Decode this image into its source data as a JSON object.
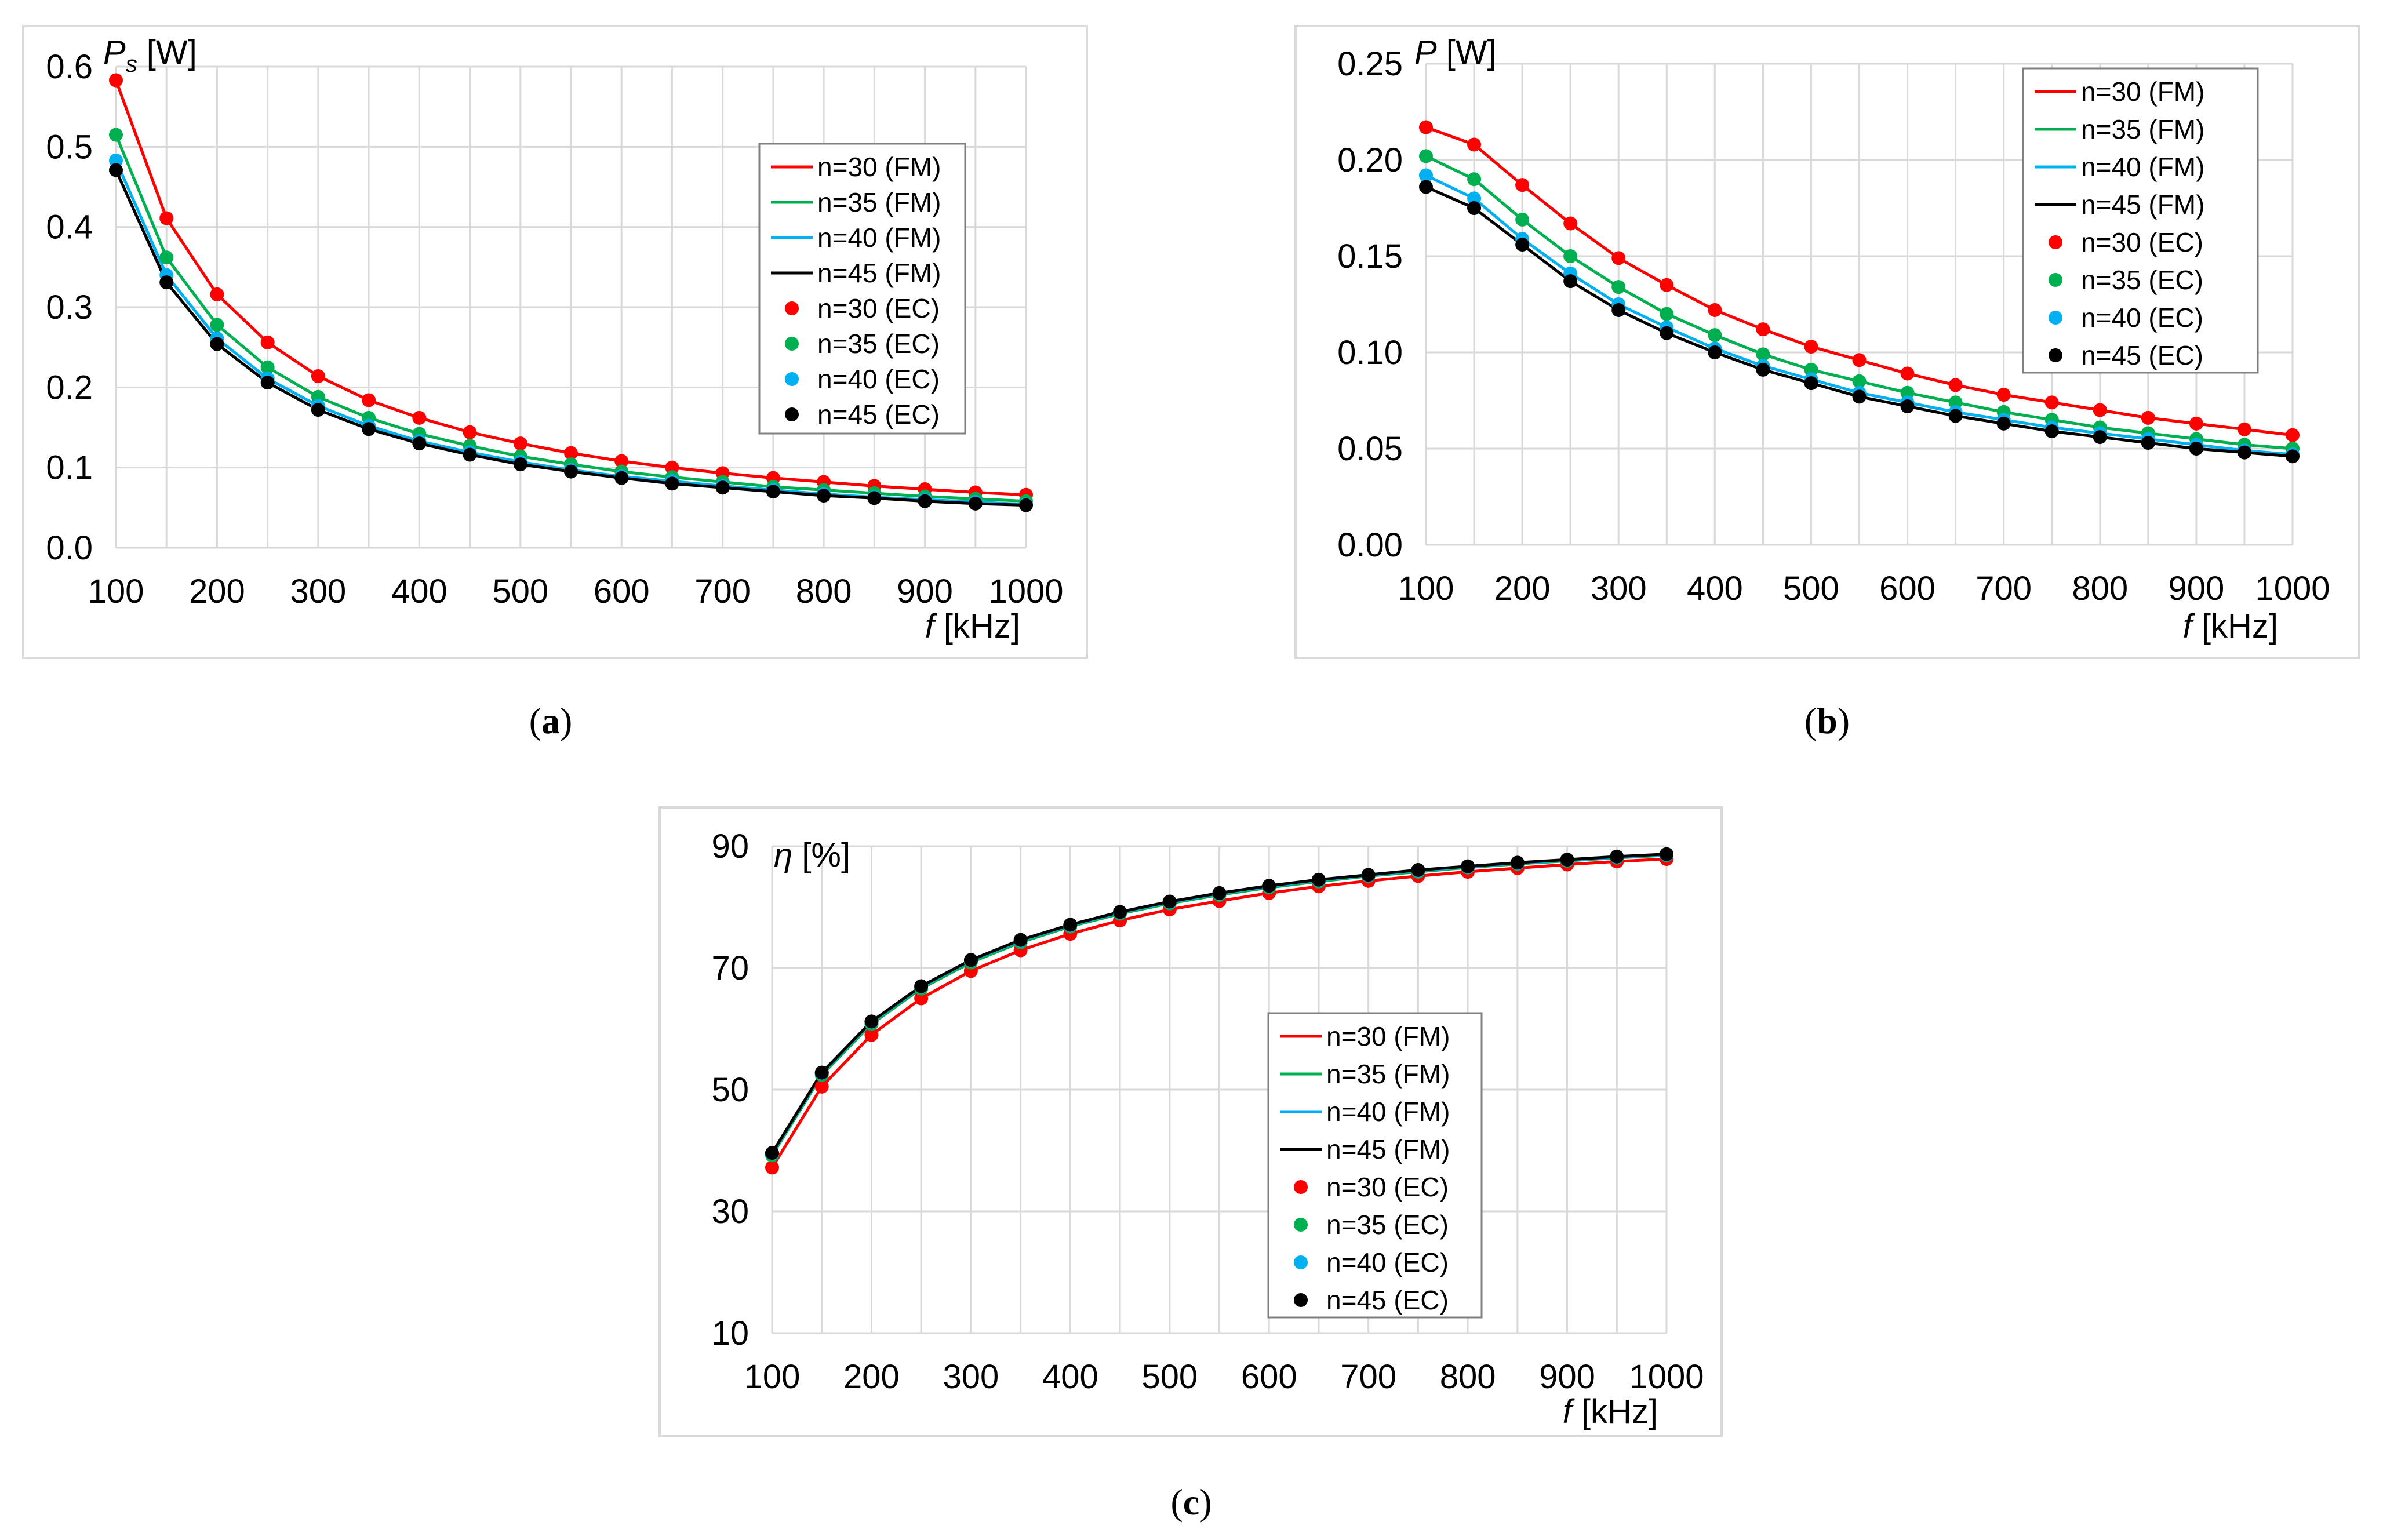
{
  "figure": {
    "panels": [
      {
        "caption_letter": "a"
      },
      {
        "caption_letter": "b"
      },
      {
        "caption_letter": "c"
      }
    ]
  },
  "chart_data": [
    {
      "type": "line",
      "panel": "a",
      "ylabel": "P",
      "ylabel_sub": "s",
      "ylabel_unit": "[W]",
      "xlabel": "f",
      "xlabel_unit": "[kHz]",
      "x": [
        100,
        150,
        200,
        250,
        300,
        350,
        400,
        450,
        500,
        550,
        600,
        650,
        700,
        750,
        800,
        850,
        900,
        950,
        1000
      ],
      "xlim": [
        100,
        1000
      ],
      "ylim": [
        0,
        0.6
      ],
      "yticks": [
        "0.0",
        "0.1",
        "0.2",
        "0.3",
        "0.4",
        "0.5",
        "0.6"
      ],
      "xticks": [
        "100",
        "200",
        "300",
        "400",
        "500",
        "600",
        "700",
        "800",
        "900",
        "1000"
      ],
      "grid": true,
      "legend": "right",
      "series": [
        {
          "name": "n=30 (FM)",
          "kind": "line",
          "color": "#ff0000",
          "values": [
            0.583,
            0.411,
            0.316,
            0.256,
            0.214,
            0.184,
            0.162,
            0.144,
            0.13,
            0.118,
            0.108,
            0.1,
            0.093,
            0.087,
            0.082,
            0.077,
            0.073,
            0.069,
            0.066
          ]
        },
        {
          "name": "n=35 (FM)",
          "kind": "line",
          "color": "#00b050",
          "values": [
            0.515,
            0.362,
            0.278,
            0.225,
            0.188,
            0.162,
            0.142,
            0.127,
            0.114,
            0.104,
            0.095,
            0.088,
            0.082,
            0.076,
            0.072,
            0.068,
            0.064,
            0.061,
            0.058
          ]
        },
        {
          "name": "n=40 (FM)",
          "kind": "line",
          "color": "#00b0f0",
          "values": [
            0.483,
            0.34,
            0.261,
            0.211,
            0.177,
            0.152,
            0.133,
            0.119,
            0.107,
            0.097,
            0.089,
            0.083,
            0.077,
            0.072,
            0.067,
            0.063,
            0.06,
            0.057,
            0.054
          ]
        },
        {
          "name": "n=45 (FM)",
          "kind": "line",
          "color": "#000000",
          "values": [
            0.471,
            0.331,
            0.254,
            0.206,
            0.172,
            0.148,
            0.13,
            0.116,
            0.104,
            0.095,
            0.087,
            0.08,
            0.075,
            0.07,
            0.065,
            0.062,
            0.058,
            0.055,
            0.053
          ]
        },
        {
          "name": "n=30 (EC)",
          "kind": "marker",
          "color": "#ff0000",
          "values": [
            0.583,
            0.411,
            0.316,
            0.256,
            0.214,
            0.184,
            0.162,
            0.144,
            0.13,
            0.118,
            0.108,
            0.1,
            0.093,
            0.087,
            0.082,
            0.077,
            0.073,
            0.069,
            0.066
          ]
        },
        {
          "name": "n=35 (EC)",
          "kind": "marker",
          "color": "#00b050",
          "values": [
            0.515,
            0.362,
            0.278,
            0.225,
            0.188,
            0.162,
            0.142,
            0.127,
            0.114,
            0.104,
            0.095,
            0.088,
            0.082,
            0.076,
            0.072,
            0.068,
            0.064,
            0.061,
            0.058
          ]
        },
        {
          "name": "n=40 (EC)",
          "kind": "marker",
          "color": "#00b0f0",
          "values": [
            0.483,
            0.34,
            0.261,
            0.211,
            0.177,
            0.152,
            0.133,
            0.119,
            0.107,
            0.097,
            0.089,
            0.083,
            0.077,
            0.072,
            0.067,
            0.063,
            0.06,
            0.057,
            0.054
          ]
        },
        {
          "name": "n=45 (EC)",
          "kind": "marker",
          "color": "#000000",
          "values": [
            0.471,
            0.331,
            0.254,
            0.206,
            0.172,
            0.148,
            0.13,
            0.116,
            0.104,
            0.095,
            0.087,
            0.08,
            0.075,
            0.07,
            0.065,
            0.062,
            0.058,
            0.055,
            0.053
          ]
        }
      ]
    },
    {
      "type": "line",
      "panel": "b",
      "ylabel": "P",
      "ylabel_sub": "",
      "ylabel_unit": "[W]",
      "xlabel": "f",
      "xlabel_unit": "[kHz]",
      "x": [
        100,
        150,
        200,
        250,
        300,
        350,
        400,
        450,
        500,
        550,
        600,
        650,
        700,
        750,
        800,
        850,
        900,
        950,
        1000
      ],
      "xlim": [
        100,
        1000
      ],
      "ylim": [
        0,
        0.25
      ],
      "yticks": [
        "0.00",
        "0.05",
        "0.10",
        "0.15",
        "0.20",
        "0.25"
      ],
      "xticks": [
        "100",
        "200",
        "300",
        "400",
        "500",
        "600",
        "700",
        "800",
        "900",
        "1000"
      ],
      "grid": true,
      "legend": "top-right",
      "series": [
        {
          "name": "n=30 (FM)",
          "kind": "line",
          "color": "#ff0000",
          "values": [
            0.217,
            0.208,
            0.187,
            0.167,
            0.149,
            0.135,
            0.122,
            0.112,
            0.103,
            0.096,
            0.089,
            0.083,
            0.078,
            0.074,
            0.07,
            0.066,
            0.063,
            0.06,
            0.057
          ]
        },
        {
          "name": "n=35 (FM)",
          "kind": "line",
          "color": "#00b050",
          "values": [
            0.202,
            0.19,
            0.169,
            0.15,
            0.134,
            0.12,
            0.109,
            0.099,
            0.091,
            0.085,
            0.079,
            0.074,
            0.069,
            0.065,
            0.061,
            0.058,
            0.055,
            0.052,
            0.05
          ]
        },
        {
          "name": "n=40 (FM)",
          "kind": "line",
          "color": "#00b0f0",
          "values": [
            0.192,
            0.18,
            0.159,
            0.141,
            0.125,
            0.113,
            0.102,
            0.093,
            0.086,
            0.079,
            0.074,
            0.069,
            0.065,
            0.061,
            0.058,
            0.055,
            0.052,
            0.049,
            0.047
          ]
        },
        {
          "name": "n=45 (FM)",
          "kind": "line",
          "color": "#000000",
          "values": [
            0.186,
            0.175,
            0.156,
            0.137,
            0.122,
            0.11,
            0.1,
            0.091,
            0.084,
            0.077,
            0.072,
            0.067,
            0.063,
            0.059,
            0.056,
            0.053,
            0.05,
            0.048,
            0.046
          ]
        },
        {
          "name": "n=30 (EC)",
          "kind": "marker",
          "color": "#ff0000",
          "values": [
            0.217,
            0.208,
            0.187,
            0.167,
            0.149,
            0.135,
            0.122,
            0.112,
            0.103,
            0.096,
            0.089,
            0.083,
            0.078,
            0.074,
            0.07,
            0.066,
            0.063,
            0.06,
            0.057
          ]
        },
        {
          "name": "n=35 (EC)",
          "kind": "marker",
          "color": "#00b050",
          "values": [
            0.202,
            0.19,
            0.169,
            0.15,
            0.134,
            0.12,
            0.109,
            0.099,
            0.091,
            0.085,
            0.079,
            0.074,
            0.069,
            0.065,
            0.061,
            0.058,
            0.055,
            0.052,
            0.05
          ]
        },
        {
          "name": "n=40 (EC)",
          "kind": "marker",
          "color": "#00b0f0",
          "values": [
            0.192,
            0.18,
            0.159,
            0.141,
            0.125,
            0.113,
            0.102,
            0.093,
            0.086,
            0.079,
            0.074,
            0.069,
            0.065,
            0.061,
            0.058,
            0.055,
            0.052,
            0.049,
            0.047
          ]
        },
        {
          "name": "n=45 (EC)",
          "kind": "marker",
          "color": "#000000",
          "values": [
            0.186,
            0.175,
            0.156,
            0.137,
            0.122,
            0.11,
            0.1,
            0.091,
            0.084,
            0.077,
            0.072,
            0.067,
            0.063,
            0.059,
            0.056,
            0.053,
            0.05,
            0.048,
            0.046
          ]
        }
      ]
    },
    {
      "type": "line",
      "panel": "c",
      "ylabel": "η",
      "ylabel_sub": "",
      "ylabel_unit": "[%]",
      "xlabel": "f",
      "xlabel_unit": "[kHz]",
      "x": [
        100,
        150,
        200,
        250,
        300,
        350,
        400,
        450,
        500,
        550,
        600,
        650,
        700,
        750,
        800,
        850,
        900,
        950,
        1000
      ],
      "xlim": [
        100,
        1000
      ],
      "ylim": [
        10,
        90
      ],
      "yticks": [
        "10",
        "30",
        "50",
        "70",
        "90"
      ],
      "xticks": [
        "100",
        "200",
        "300",
        "400",
        "500",
        "600",
        "700",
        "800",
        "900",
        "1000"
      ],
      "grid": true,
      "legend": "center-right",
      "series": [
        {
          "name": "n=30 (FM)",
          "kind": "line",
          "color": "#ff0000",
          "values": [
            37.2,
            50.5,
            59.0,
            65.0,
            69.5,
            72.9,
            75.6,
            77.8,
            79.6,
            81.0,
            82.3,
            83.4,
            84.3,
            85.1,
            85.8,
            86.4,
            87.0,
            87.5,
            87.9
          ]
        },
        {
          "name": "n=35 (FM)",
          "kind": "line",
          "color": "#00b050",
          "values": [
            39.2,
            52.4,
            60.8,
            66.6,
            70.9,
            74.2,
            76.8,
            78.9,
            80.6,
            82.0,
            83.2,
            84.2,
            85.1,
            85.8,
            86.5,
            87.1,
            87.6,
            88.1,
            88.5
          ]
        },
        {
          "name": "n=40 (FM)",
          "kind": "line",
          "color": "#00b0f0",
          "values": [
            39.5,
            52.7,
            61.1,
            66.9,
            71.2,
            74.5,
            77.0,
            79.1,
            80.8,
            82.2,
            83.4,
            84.4,
            85.2,
            86.0,
            86.6,
            87.2,
            87.7,
            88.2,
            88.6
          ]
        },
        {
          "name": "n=45 (FM)",
          "kind": "line",
          "color": "#000000",
          "values": [
            39.6,
            52.8,
            61.2,
            67.0,
            71.3,
            74.6,
            77.1,
            79.2,
            80.9,
            82.3,
            83.5,
            84.5,
            85.3,
            86.1,
            86.7,
            87.3,
            87.8,
            88.3,
            88.7
          ]
        },
        {
          "name": "n=30 (EC)",
          "kind": "marker",
          "color": "#ff0000",
          "values": [
            37.2,
            50.5,
            59.0,
            65.0,
            69.5,
            72.9,
            75.6,
            77.8,
            79.6,
            81.0,
            82.3,
            83.4,
            84.3,
            85.1,
            85.8,
            86.4,
            87.0,
            87.5,
            87.9
          ]
        },
        {
          "name": "n=35 (EC)",
          "kind": "marker",
          "color": "#00b050",
          "values": [
            39.2,
            52.4,
            60.8,
            66.6,
            70.9,
            74.2,
            76.8,
            78.9,
            80.6,
            82.0,
            83.2,
            84.2,
            85.1,
            85.8,
            86.5,
            87.1,
            87.6,
            88.1,
            88.5
          ]
        },
        {
          "name": "n=40 (EC)",
          "kind": "marker",
          "color": "#00b0f0",
          "values": [
            39.5,
            52.7,
            61.1,
            66.9,
            71.2,
            74.5,
            77.0,
            79.1,
            80.8,
            82.2,
            83.4,
            84.4,
            85.2,
            86.0,
            86.6,
            87.2,
            87.7,
            88.2,
            88.6
          ]
        },
        {
          "name": "n=45 (EC)",
          "kind": "marker",
          "color": "#000000",
          "values": [
            39.6,
            52.8,
            61.2,
            67.0,
            71.3,
            74.6,
            77.1,
            79.2,
            80.9,
            82.3,
            83.5,
            84.5,
            85.3,
            86.1,
            86.7,
            87.3,
            87.8,
            88.3,
            88.7
          ]
        }
      ]
    }
  ]
}
